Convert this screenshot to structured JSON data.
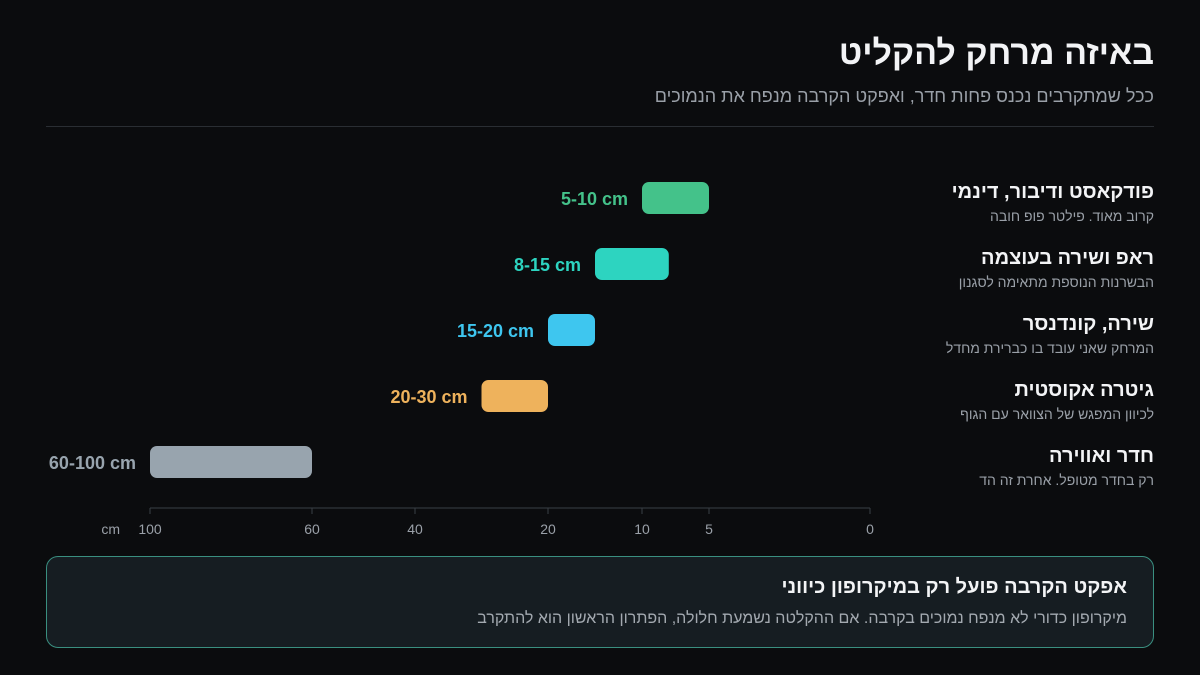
{
  "header": {
    "title": "באיזה מרחק להקליט",
    "subtitle": "ככל שמתקרבים נכנס פחות חדר, ואפקט הקרבה מנפח את הנמוכים"
  },
  "chart_data": {
    "type": "bar",
    "orientation": "horizontal-range",
    "x_axis": {
      "unit_label": "cm",
      "reversed": true,
      "ticks": [
        0,
        5,
        10,
        20,
        40,
        60,
        100
      ],
      "tick_labels": [
        "0",
        "5",
        "10",
        "20",
        "40",
        "60",
        "100"
      ]
    },
    "rows": [
      {
        "name": "פודקאסט ודיבור, דינמי",
        "note": "קרוב מאוד. פילטר פופ חובה",
        "min": 5,
        "max": 10,
        "range_label": "5-10 cm",
        "color": "#44c28a"
      },
      {
        "name": "ראפ ושירה בעוצמה",
        "note": "הבשרנות הנוספת מתאימה לסגנון",
        "min": 8,
        "max": 15,
        "range_label": "8-15 cm",
        "color": "#2dd4c0"
      },
      {
        "name": "שירה, קונדנסר",
        "note": "המרחק שאני עובד בו כברירת מחדל",
        "min": 15,
        "max": 20,
        "range_label": "15-20 cm",
        "color": "#3ec6ef"
      },
      {
        "name": "גיטרה אקוסטית",
        "note": "לכיוון המפגש של הצוואר עם הגוף",
        "min": 20,
        "max": 30,
        "range_label": "20-30 cm",
        "color": "#eeb25c"
      },
      {
        "name": "חדר ואווירה",
        "note": "רק בחדר מטופל. אחרת זה הד",
        "min": 60,
        "max": 100,
        "range_label": "60-100 cm",
        "color": "#98a4ae"
      }
    ],
    "grid": false,
    "legend": "none"
  },
  "callout": {
    "title": "אפקט הקרבה פועל רק במיקרופון כיווני",
    "text": "מיקרופון כדורי לא מנפח נמוכים בקרבה. אם ההקלטה נשמעת חלולה, הפתרון הראשון הוא להתקרב"
  }
}
